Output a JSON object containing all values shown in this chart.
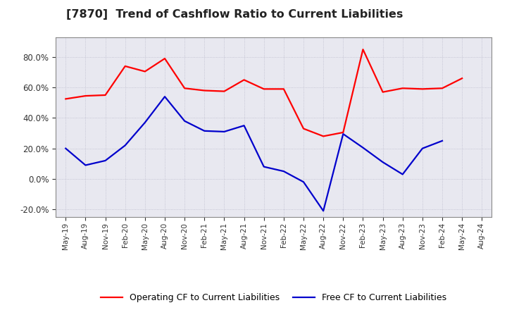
{
  "title": "[7870]  Trend of Cashflow Ratio to Current Liabilities",
  "x_labels": [
    "May-19",
    "Aug-19",
    "Nov-19",
    "Feb-20",
    "May-20",
    "Aug-20",
    "Nov-20",
    "Feb-21",
    "May-21",
    "Aug-21",
    "Nov-21",
    "Feb-22",
    "May-22",
    "Aug-22",
    "Nov-22",
    "Feb-23",
    "May-23",
    "Aug-23",
    "Nov-23",
    "Feb-24",
    "May-24",
    "Aug-24"
  ],
  "operating_cf": [
    52.5,
    54.5,
    55.0,
    74.0,
    70.5,
    79.0,
    59.5,
    58.0,
    57.5,
    65.0,
    59.0,
    59.0,
    33.0,
    28.0,
    30.5,
    85.0,
    57.0,
    59.5,
    59.0,
    59.5,
    66.0,
    null
  ],
  "free_cf": [
    20.0,
    9.0,
    12.0,
    22.0,
    37.0,
    54.0,
    38.0,
    31.5,
    31.0,
    35.0,
    8.0,
    5.0,
    -2.0,
    -21.0,
    29.5,
    20.5,
    11.0,
    3.0,
    20.0,
    25.0,
    null,
    null
  ],
  "operating_color": "#FF0000",
  "free_color": "#0000CC",
  "ylim": [
    -25,
    93
  ],
  "yticks": [
    -20,
    0,
    20,
    40,
    60,
    80
  ],
  "background_color": "#FFFFFF",
  "plot_bg_color": "#E8E8F0",
  "grid_color": "#BBBBCC",
  "legend_labels": [
    "Operating CF to Current Liabilities",
    "Free CF to Current Liabilities"
  ]
}
